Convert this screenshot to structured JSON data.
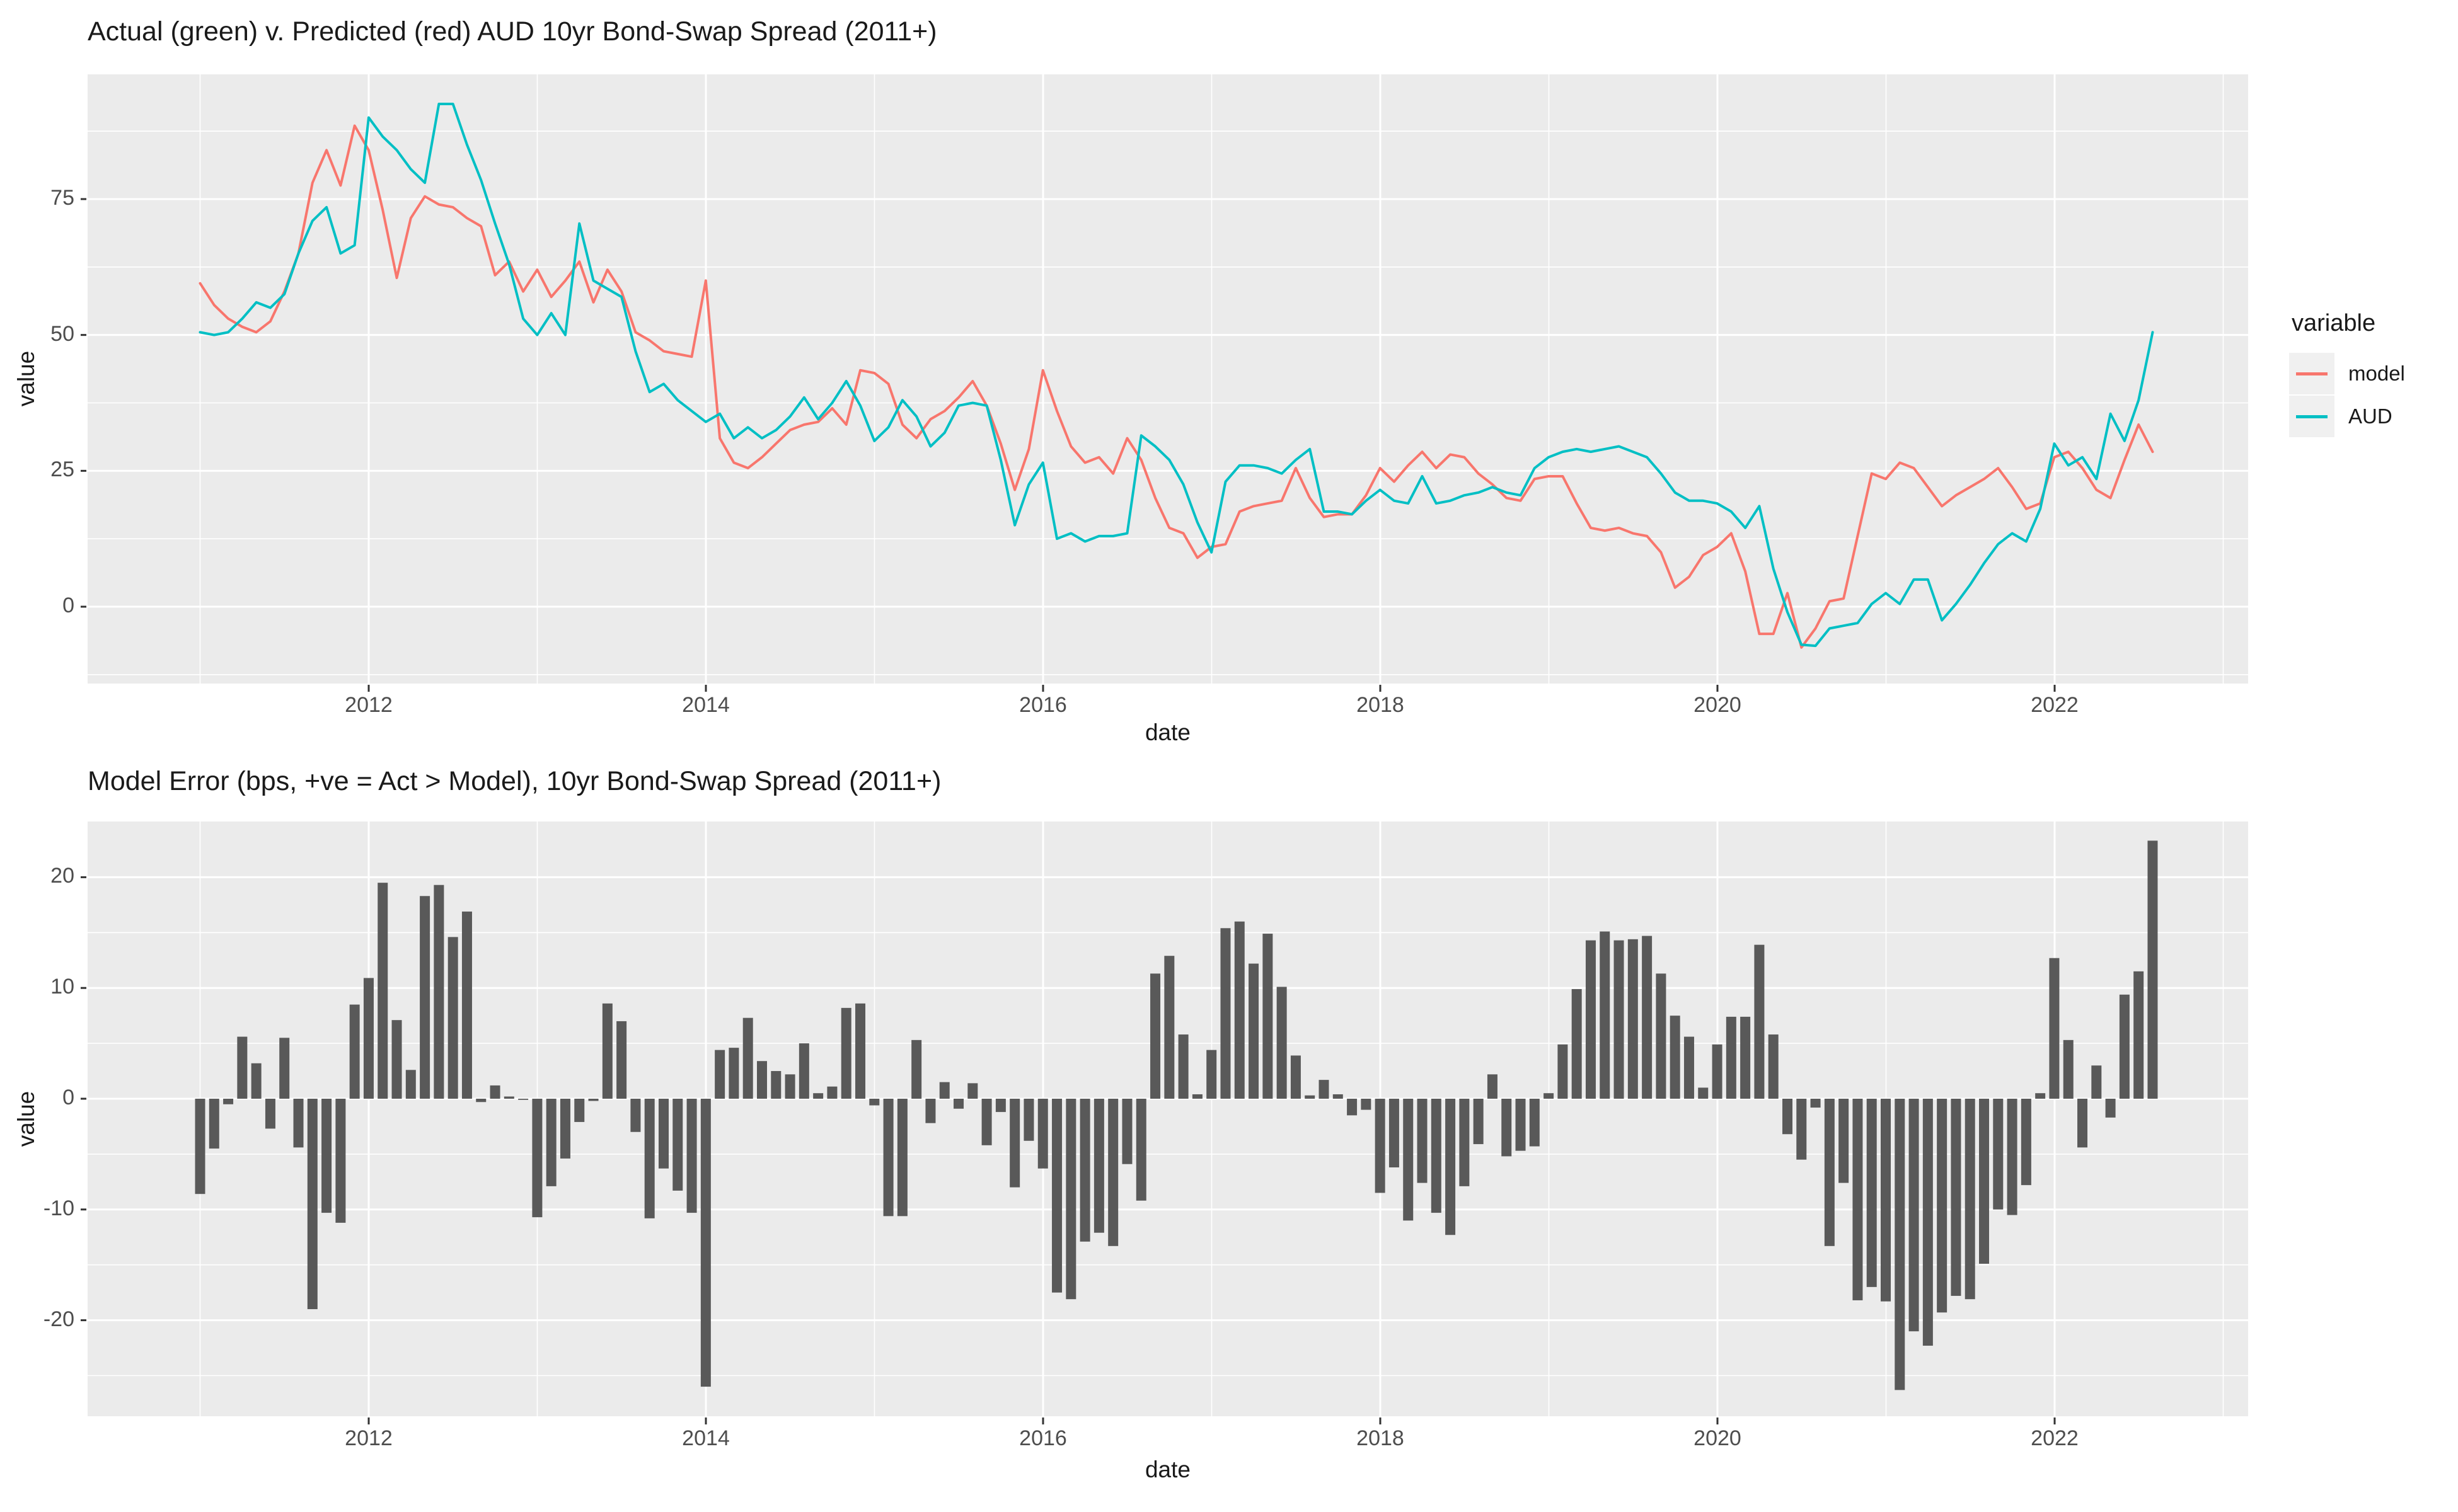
{
  "figure": {
    "background": "#ffffff",
    "panel_background": "#ebebeb",
    "grid_color": "#ffffff",
    "tick_color": "#333333",
    "tick_text_color": "#4d4d4d",
    "bar_color": "#595959"
  },
  "chart_data": [
    {
      "type": "line",
      "title": "Actual (green) v. Predicted (red) AUD 10yr Bond-Swap Spread (2011+)",
      "xlabel": "date",
      "ylabel": "value",
      "x_start": "2011-01",
      "x_frequency": "monthly",
      "x_tick_labels": [
        "2012",
        "2014",
        "2016",
        "2018",
        "2020",
        "2022"
      ],
      "y_tick_labels": [
        "0",
        "25",
        "50",
        "75"
      ],
      "y_ticks": [
        0,
        25,
        50,
        75
      ],
      "y_minor": [
        -12.5,
        12.5,
        37.5,
        62.5,
        87.5
      ],
      "ylim": [
        -14,
        98
      ],
      "grid": true,
      "legend": {
        "title": "variable",
        "position": "right"
      },
      "series": [
        {
          "name": "model",
          "color": "#F8766D",
          "values": [
            59.5,
            55.5,
            53,
            51.5,
            50.5,
            52.5,
            58,
            65,
            78,
            84,
            77.5,
            88.5,
            84,
            73,
            60.5,
            71.5,
            75.5,
            74,
            73.5,
            71.5,
            70,
            61,
            63.5,
            58,
            62,
            57,
            60,
            63.5,
            56,
            62,
            58,
            50.5,
            49,
            47,
            46.5,
            46,
            60,
            31,
            26.5,
            25.5,
            27.5,
            30,
            32.5,
            33.5,
            34,
            36.5,
            33.5,
            43.5,
            43,
            41,
            33.5,
            31,
            34.5,
            36,
            38.5,
            41.5,
            37,
            30,
            21.5,
            29,
            43.5,
            36,
            29.5,
            26.5,
            27.5,
            24.5,
            31,
            27,
            20,
            14.5,
            13.5,
            9,
            11,
            11.5,
            17.5,
            18.5,
            19,
            19.5,
            25.5,
            20,
            16.5,
            17,
            17,
            20.5,
            25.5,
            23,
            26,
            28.5,
            25.5,
            28,
            27.5,
            24.5,
            22.5,
            20,
            19.5,
            23.5,
            24,
            24,
            19,
            14.5,
            14,
            14.5,
            13.5,
            13,
            10,
            3.5,
            5.5,
            9.5,
            11,
            13.5,
            6.5,
            -5,
            -5,
            2.5,
            -7.5,
            -4,
            1,
            1.5,
            13,
            24.5,
            23.5,
            26.5,
            25.5,
            22,
            18.5,
            20.5,
            22,
            23.5,
            25.5,
            22,
            18,
            19,
            27.5,
            28.5,
            25.5,
            21.5,
            20,
            27,
            33.5,
            28.5
          ]
        },
        {
          "name": "AUD",
          "color": "#00BFC4",
          "values": [
            50.5,
            50,
            50.5,
            53,
            56,
            55,
            57.5,
            65,
            71,
            73.5,
            65,
            66.5,
            90,
            86.5,
            84,
            80.5,
            78,
            92.5,
            92.5,
            85,
            78.5,
            70.5,
            63,
            53,
            50,
            54,
            50,
            70.5,
            60,
            58.5,
            57,
            47,
            39.5,
            41,
            38,
            36,
            34,
            35.5,
            31,
            33,
            31,
            32.5,
            35,
            38.5,
            34.5,
            37.5,
            41.5,
            37,
            30.5,
            33,
            38,
            35,
            29.5,
            32,
            37,
            37.5,
            37,
            27,
            15,
            22.5,
            26.5,
            12.5,
            13.5,
            12,
            13,
            13,
            13.5,
            31.5,
            29.5,
            27,
            22.5,
            15.5,
            10,
            23,
            26,
            26,
            25.5,
            24.5,
            27,
            29,
            17.5,
            17.5,
            17,
            19.5,
            21.5,
            19.5,
            19,
            24,
            19,
            19.5,
            20.5,
            21,
            22,
            21,
            20.5,
            25.5,
            27.5,
            28.5,
            29,
            28.5,
            29,
            29.5,
            28.5,
            27.5,
            24.5,
            21,
            19.5,
            19.5,
            19,
            17.5,
            14.5,
            18.5,
            7,
            -1,
            -7,
            -7.2,
            -4,
            -3.5,
            -3,
            0.5,
            2.5,
            0.5,
            5,
            5,
            -2.5,
            0.5,
            4,
            8,
            11.5,
            13.5,
            12,
            18,
            30,
            26,
            27.5,
            23.5,
            35.5,
            30.5,
            38,
            50.5
          ]
        }
      ]
    },
    {
      "type": "bar",
      "title": "Model Error (bps, +ve = Act > Model), 10yr Bond-Swap Spread (2011+)",
      "xlabel": "date",
      "ylabel": "value",
      "x_start": "2011-01",
      "x_frequency": "monthly",
      "x_tick_labels": [
        "2012",
        "2014",
        "2016",
        "2018",
        "2020",
        "2022"
      ],
      "y_tick_labels": [
        "-20",
        "-10",
        "0",
        "10",
        "20"
      ],
      "y_ticks": [
        -20,
        -10,
        0,
        10,
        20
      ],
      "y_minor": [
        -25,
        -15,
        -5,
        5,
        15
      ],
      "ylim": [
        -28.7,
        25
      ],
      "grid": true,
      "bar_color": "#595959",
      "values": [
        -8.6,
        -4.5,
        -0.5,
        5.6,
        3.2,
        -2.7,
        5.5,
        -4.4,
        -19,
        -10.3,
        -11.2,
        8.5,
        10.9,
        19.5,
        7.1,
        2.6,
        18.3,
        19.3,
        14.6,
        16.9,
        -0.3,
        1.2,
        0.2,
        -0.1,
        -10.7,
        -7.9,
        -5.4,
        -2.1,
        -0.2,
        8.6,
        7,
        -3,
        -10.8,
        -6.3,
        -8.3,
        -10.3,
        -26,
        4.4,
        4.6,
        7.3,
        3.4,
        2.5,
        2.2,
        5,
        0.5,
        1.1,
        8.2,
        8.6,
        -0.6,
        -10.6,
        -10.6,
        5.3,
        -2.2,
        1.5,
        -0.9,
        1.4,
        -4.2,
        -1.2,
        -8,
        -3.8,
        -6.3,
        -17.5,
        -18.1,
        -12.9,
        -12.1,
        -13.3,
        -5.9,
        -9.2,
        11.3,
        12.9,
        5.8,
        0.4,
        4.4,
        15.4,
        16,
        12.2,
        14.9,
        10.1,
        3.9,
        0.3,
        1.7,
        0.4,
        -1.5,
        -1,
        -8.5,
        -6.2,
        -11,
        -7.6,
        -10.3,
        -12.3,
        -7.9,
        -4.1,
        2.2,
        -5.2,
        -4.7,
        -4.3,
        0.5,
        4.9,
        9.9,
        14.3,
        15.1,
        14.3,
        14.4,
        14.7,
        11.3,
        7.5,
        5.6,
        1,
        4.9,
        7.4,
        7.4,
        13.9,
        5.8,
        -3.2,
        -5.5,
        -0.8,
        -13.3,
        -7.6,
        -18.2,
        -17,
        -18.3,
        -26.3,
        -21,
        -22.3,
        -19.3,
        -17.8,
        -18.1,
        -14.9,
        -10,
        -10.5,
        -7.8,
        0.5,
        12.7,
        5.3,
        -4.4,
        3,
        -1.7,
        9.4,
        11.5,
        23.3
      ]
    }
  ]
}
